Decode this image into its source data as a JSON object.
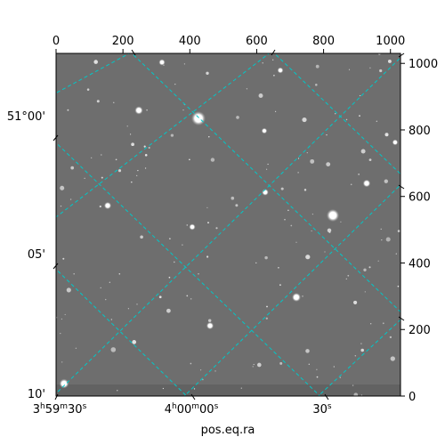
{
  "chart_data": {
    "type": "image",
    "title": "",
    "xlabel": "pos.eq.ra",
    "ylabel": "",
    "pixel_axes": {
      "x_ticks": [
        0,
        200,
        400,
        600,
        800,
        1000
      ],
      "y_ticks": [
        0,
        200,
        400,
        600,
        800,
        1000
      ],
      "xlim": [
        0,
        1030
      ],
      "ylim": [
        0,
        1030
      ]
    },
    "world_axes": {
      "ra_labels": [
        {
          "text": "3h59m30s",
          "main": "3",
          "h": "h",
          "m_val": "59",
          "m": "m",
          "s_val": "30",
          "s": "s"
        },
        {
          "text": "4h00m00s",
          "main": "4",
          "h": "h",
          "m_val": "00",
          "m": "m",
          "s_val": "00",
          "s": "s"
        },
        {
          "text": "30s",
          "main": "",
          "h": "",
          "m_val": "",
          "m": "",
          "s_val": "30",
          "s": "s"
        }
      ],
      "dec_labels": [
        "51°00'",
        "05'",
        "10'"
      ]
    },
    "grid": true,
    "grid_color": "#00c8c8",
    "background_color": "#6e6e6e"
  }
}
